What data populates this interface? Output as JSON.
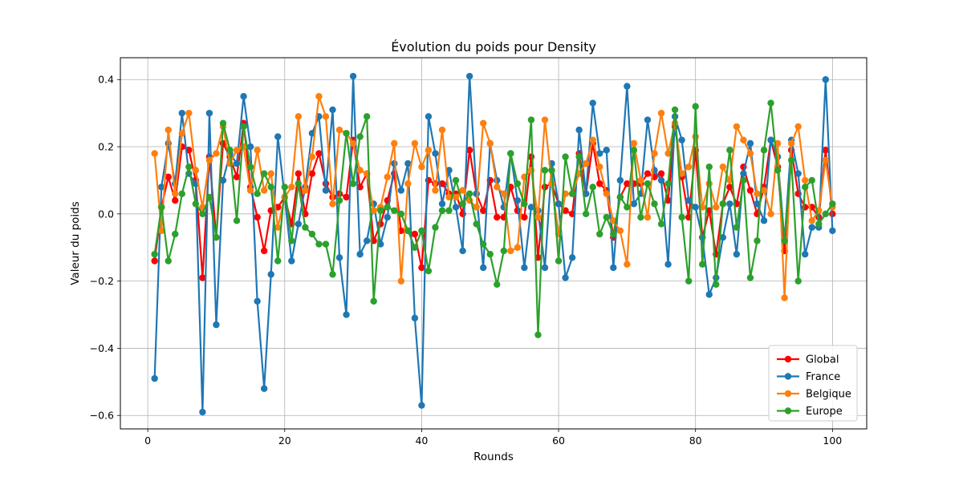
{
  "chart_data": {
    "type": "line",
    "title": "Évolution du poids pour Density",
    "xlabel": "Rounds",
    "ylabel": "Valeur du poids",
    "xlim": [
      -4,
      105
    ],
    "ylim": [
      -0.64,
      0.465
    ],
    "xticks": [
      0,
      20,
      40,
      60,
      80,
      100
    ],
    "xtick_labels": [
      "0",
      "20",
      "40",
      "60",
      "80",
      "100"
    ],
    "yticks": [
      -0.6,
      -0.4,
      -0.2,
      0.0,
      0.2,
      0.4
    ],
    "ytick_labels": [
      "−0.6",
      "−0.4",
      "−0.2",
      "0.0",
      "0.2",
      "0.4"
    ],
    "grid": true,
    "legend_position": "lower-right",
    "x": [
      1,
      2,
      3,
      4,
      5,
      6,
      7,
      8,
      9,
      10,
      11,
      12,
      13,
      14,
      15,
      16,
      17,
      18,
      19,
      20,
      21,
      22,
      23,
      24,
      25,
      26,
      27,
      28,
      29,
      30,
      31,
      32,
      33,
      34,
      35,
      36,
      37,
      38,
      39,
      40,
      41,
      42,
      43,
      44,
      45,
      46,
      47,
      48,
      49,
      50,
      51,
      52,
      53,
      54,
      55,
      56,
      57,
      58,
      59,
      60,
      61,
      62,
      63,
      64,
      65,
      66,
      67,
      68,
      69,
      70,
      71,
      72,
      73,
      74,
      75,
      76,
      77,
      78,
      79,
      80,
      81,
      82,
      83,
      84,
      85,
      86,
      87,
      88,
      89,
      90,
      91,
      92,
      93,
      94,
      95,
      96,
      97,
      98,
      99,
      100
    ],
    "series": [
      {
        "name": "Global",
        "color": "#ff0000",
        "values": [
          -0.14,
          0.02,
          0.11,
          0.04,
          0.2,
          0.19,
          0.1,
          -0.19,
          0.17,
          -0.07,
          0.21,
          0.17,
          0.11,
          0.27,
          0.08,
          -0.01,
          -0.11,
          0.01,
          0.02,
          0.05,
          -0.03,
          0.12,
          0.0,
          0.12,
          0.18,
          0.09,
          0.05,
          0.06,
          0.05,
          0.22,
          0.08,
          0.12,
          -0.08,
          -0.03,
          0.04,
          0.12,
          -0.05,
          -0.05,
          -0.06,
          -0.16,
          0.1,
          0.09,
          0.09,
          0.06,
          0.06,
          0.0,
          0.19,
          0.06,
          0.01,
          0.1,
          -0.01,
          -0.01,
          0.08,
          0.01,
          -0.01,
          0.17,
          -0.13,
          0.08,
          0.09,
          0.03,
          0.01,
          0.0,
          0.18,
          0.06,
          0.21,
          0.09,
          0.07,
          -0.07,
          0.05,
          0.09,
          0.09,
          0.09,
          0.12,
          0.11,
          0.12,
          0.04,
          0.26,
          0.11,
          -0.01,
          0.19,
          -0.07,
          0.01,
          -0.12,
          0.03,
          0.08,
          0.03,
          0.14,
          0.07,
          0.0,
          0.08,
          0.22,
          0.14,
          -0.11,
          0.19,
          0.06,
          0.02,
          0.02,
          -0.01,
          0.19,
          0.0
        ]
      },
      {
        "name": "France",
        "color": "#1f77b4",
        "values": [
          -0.49,
          0.08,
          0.21,
          0.09,
          0.3,
          0.12,
          0.09,
          -0.59,
          0.3,
          -0.33,
          0.1,
          0.18,
          0.15,
          0.35,
          0.2,
          -0.26,
          -0.52,
          -0.18,
          0.23,
          0.05,
          -0.14,
          -0.03,
          0.08,
          0.24,
          0.29,
          0.07,
          0.31,
          -0.13,
          -0.3,
          0.41,
          -0.12,
          -0.08,
          0.03,
          -0.09,
          -0.01,
          0.15,
          0.07,
          0.15,
          -0.31,
          -0.57,
          0.29,
          0.18,
          0.03,
          0.13,
          0.02,
          -0.11,
          0.41,
          0.06,
          -0.16,
          0.21,
          0.1,
          0.02,
          0.18,
          0.04,
          -0.16,
          0.02,
          0.01,
          -0.16,
          0.15,
          0.03,
          -0.19,
          -0.13,
          0.25,
          0.06,
          0.33,
          0.18,
          0.19,
          -0.16,
          0.1,
          0.38,
          0.03,
          0.06,
          0.28,
          0.13,
          0.1,
          -0.15,
          0.29,
          0.22,
          0.04,
          0.02,
          -0.07,
          -0.24,
          -0.19,
          -0.07,
          0.03,
          -0.12,
          0.12,
          0.21,
          0.03,
          -0.02,
          0.22,
          0.17,
          -0.08,
          0.22,
          0.12,
          -0.12,
          -0.04,
          -0.04,
          0.4,
          -0.05
        ]
      },
      {
        "name": "Belgique",
        "color": "#ff7f0e",
        "values": [
          0.18,
          -0.05,
          0.25,
          0.06,
          0.24,
          0.3,
          0.13,
          0.02,
          0.16,
          0.18,
          0.26,
          0.15,
          0.19,
          0.2,
          0.07,
          0.19,
          0.07,
          0.12,
          -0.04,
          0.05,
          0.08,
          0.29,
          0.07,
          0.17,
          0.35,
          0.29,
          0.03,
          0.25,
          0.24,
          0.21,
          0.13,
          0.12,
          0.01,
          0.02,
          0.11,
          0.21,
          -0.2,
          0.09,
          0.21,
          0.14,
          0.19,
          0.07,
          0.25,
          0.05,
          0.05,
          0.07,
          0.04,
          0.02,
          0.27,
          0.21,
          0.08,
          0.06,
          -0.11,
          -0.1,
          0.11,
          0.13,
          -0.01,
          0.28,
          0.09,
          -0.06,
          0.06,
          0.06,
          0.12,
          0.15,
          0.22,
          0.14,
          0.06,
          -0.02,
          -0.05,
          -0.15,
          0.21,
          0.1,
          -0.01,
          0.18,
          0.3,
          0.18,
          0.27,
          0.12,
          0.14,
          0.23,
          0.02,
          0.09,
          0.02,
          0.14,
          0.1,
          0.26,
          0.22,
          0.18,
          0.06,
          0.07,
          0.0,
          0.21,
          -0.25,
          0.21,
          0.26,
          0.1,
          -0.02,
          0.01,
          0.16,
          0.02
        ]
      },
      {
        "name": "Europe",
        "color": "#2ca02c",
        "values": [
          -0.12,
          0.02,
          -0.14,
          -0.06,
          0.06,
          0.14,
          0.03,
          0.0,
          0.05,
          -0.07,
          0.27,
          0.19,
          -0.02,
          0.26,
          0.14,
          0.06,
          0.12,
          0.08,
          -0.14,
          0.08,
          -0.08,
          0.09,
          -0.04,
          -0.06,
          -0.09,
          -0.09,
          -0.18,
          0.04,
          0.24,
          0.09,
          0.23,
          0.29,
          -0.26,
          0.01,
          0.02,
          0.01,
          0.0,
          -0.05,
          -0.1,
          -0.05,
          -0.17,
          -0.04,
          0.01,
          0.01,
          0.1,
          0.03,
          0.06,
          -0.03,
          -0.09,
          -0.12,
          -0.21,
          -0.11,
          0.18,
          0.09,
          0.03,
          0.28,
          -0.36,
          0.13,
          0.13,
          -0.14,
          0.17,
          0.06,
          0.17,
          0.0,
          0.08,
          -0.06,
          -0.01,
          -0.06,
          0.05,
          0.02,
          0.19,
          -0.01,
          0.09,
          0.03,
          -0.03,
          0.09,
          0.31,
          -0.01,
          -0.2,
          0.32,
          -0.15,
          0.14,
          -0.21,
          0.03,
          0.19,
          -0.04,
          0.1,
          -0.19,
          -0.08,
          0.19,
          0.33,
          0.13,
          -0.08,
          0.16,
          -0.2,
          0.08,
          0.1,
          -0.03,
          0.0,
          0.03
        ]
      }
    ]
  }
}
